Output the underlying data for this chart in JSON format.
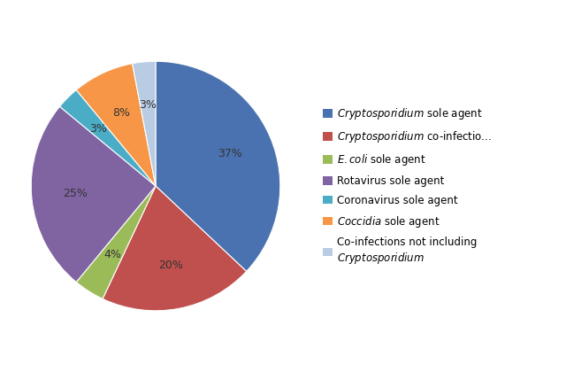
{
  "values": [
    37,
    20,
    4,
    25,
    3,
    8,
    3
  ],
  "colors": [
    "#4A72B0",
    "#C0504D",
    "#9BBB59",
    "#8064A2",
    "#4BACC6",
    "#F79646",
    "#B8CCE4"
  ],
  "startangle": 90,
  "figsize": [
    6.4,
    4.2
  ],
  "dpi": 100,
  "pct_labels": [
    "37%",
    "20%",
    "4%",
    "25%",
    "3%",
    "8%",
    "3%"
  ],
  "legend_labels_line1": [
    "$\\it{Cryptosporidium}$ sole agent",
    "$\\it{Cryptosporidium}$ co-infectio...",
    "$\\it{E. coli}$ sole agent",
    "Rotavirus sole agent",
    "Coronavirus sole agent",
    "$\\it{Coccidia}$ sole agent",
    "Co-infections not including"
  ],
  "legend_label_last": "$\\it{Cryptosporidium}$"
}
